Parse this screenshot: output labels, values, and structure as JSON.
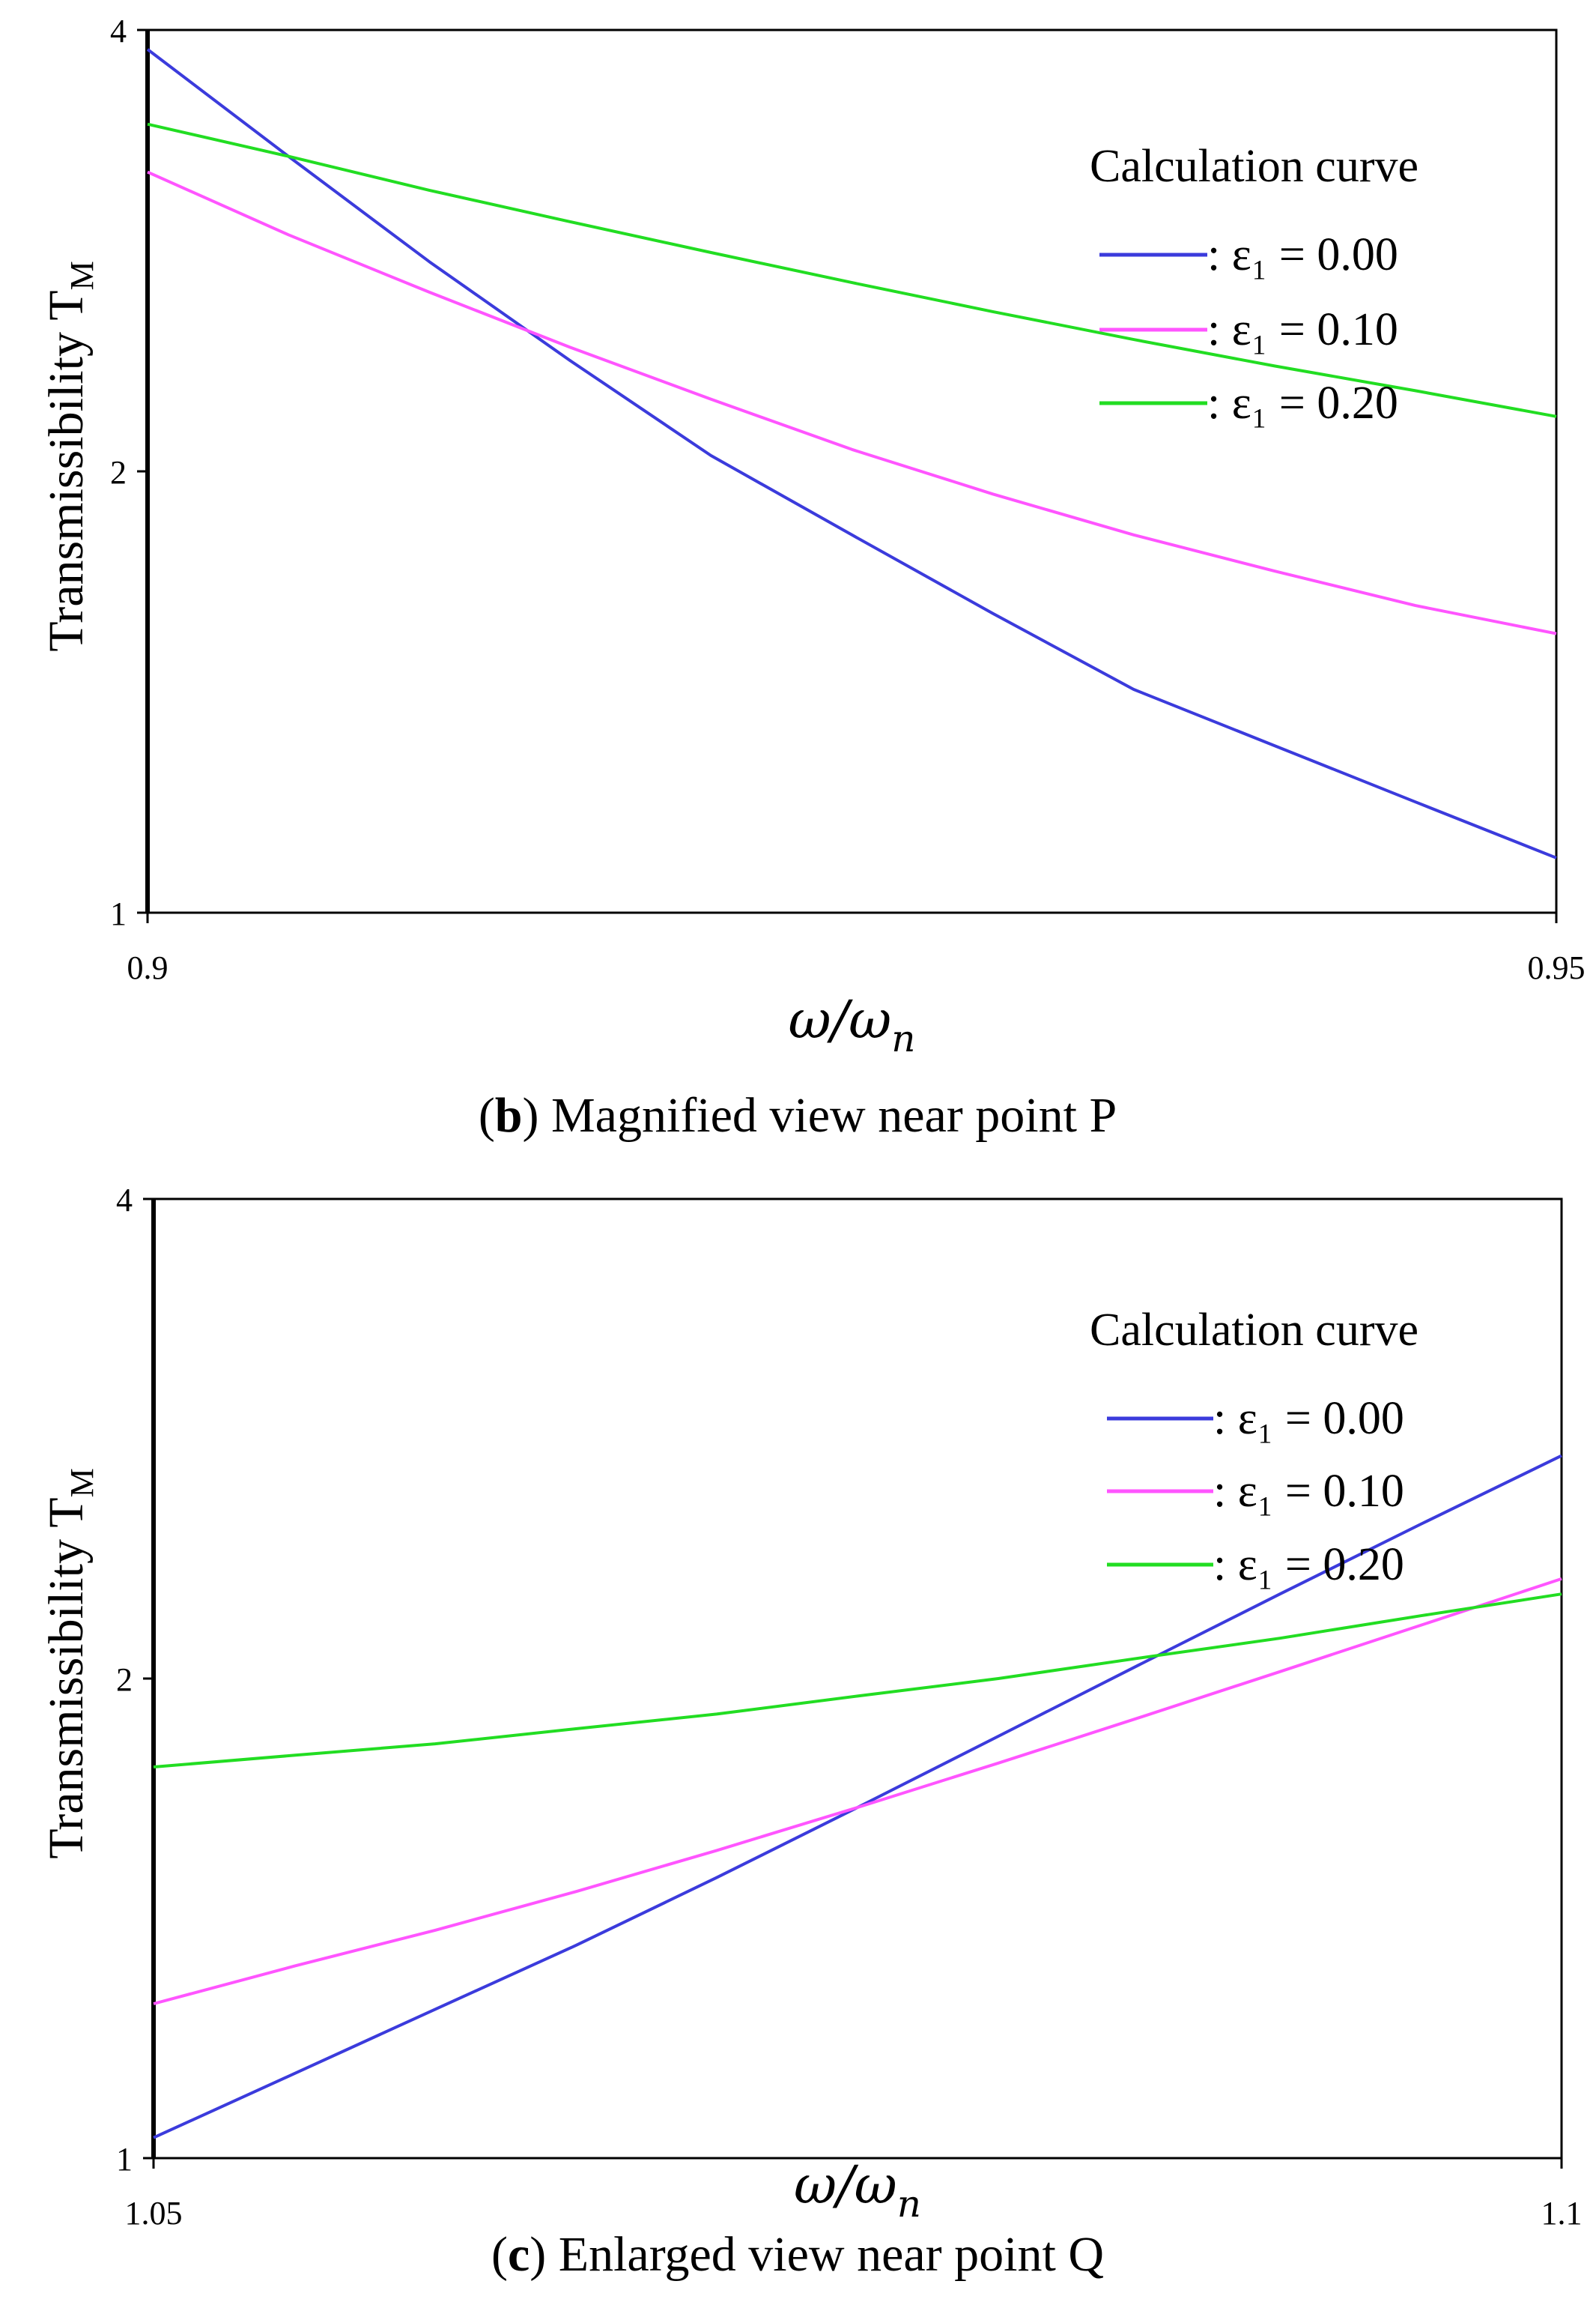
{
  "chart_data": [
    {
      "type": "line",
      "panel": "b",
      "caption_letter": "b",
      "caption_text": "Magnified view near point P",
      "ylabel": "Transmissibility T",
      "ylabel_sub": "M",
      "xlabel": "ω/ω",
      "xlabel_sub": "n",
      "yscale": "log",
      "xlim": [
        0.9,
        0.95
      ],
      "ylim": [
        1,
        4
      ],
      "x_ticks": [
        "0.9",
        "0.95"
      ],
      "y_ticks": [
        "1",
        "2",
        "4"
      ],
      "legend_title": "Calculation curve",
      "legend_position": "top-right",
      "x": [
        0.9,
        0.905,
        0.91,
        0.915,
        0.92,
        0.925,
        0.93,
        0.935,
        0.94,
        0.945,
        0.95
      ],
      "series": [
        {
          "name": ": ε₁ = 0.00",
          "color": "#3b3bdc",
          "values": [
            3.88,
            3.28,
            2.78,
            2.38,
            2.05,
            1.81,
            1.6,
            1.42,
            1.3,
            1.19,
            1.09
          ]
        },
        {
          "name": ": ε₁ = 0.10",
          "color": "#ff55ff",
          "values": [
            3.2,
            2.9,
            2.65,
            2.43,
            2.24,
            2.07,
            1.93,
            1.81,
            1.71,
            1.62,
            1.55
          ]
        },
        {
          "name": ": ε₁ = 0.20",
          "color": "#22dd22",
          "values": [
            3.45,
            3.28,
            3.11,
            2.96,
            2.82,
            2.69,
            2.57,
            2.46,
            2.36,
            2.27,
            2.18
          ]
        }
      ]
    },
    {
      "type": "line",
      "panel": "c",
      "caption_letter": "c",
      "caption_text": "Enlarged view near point Q",
      "ylabel": "Transmissibility T",
      "ylabel_sub": "M",
      "xlabel": "ω/ω",
      "xlabel_sub": "n",
      "yscale": "log",
      "xlim": [
        1.05,
        1.1
      ],
      "ylim": [
        1,
        4
      ],
      "x_ticks": [
        "1.05",
        "1.1"
      ],
      "y_ticks": [
        "1",
        "2",
        "4"
      ],
      "legend_title": "Calculation curve",
      "legend_position": "top-right",
      "x": [
        1.05,
        1.055,
        1.06,
        1.065,
        1.07,
        1.075,
        1.08,
        1.085,
        1.09,
        1.095,
        1.1
      ],
      "series": [
        {
          "name": ": ε₁ = 0.00",
          "color": "#3b3bdc",
          "values": [
            1.03,
            1.13,
            1.24,
            1.36,
            1.5,
            1.66,
            1.84,
            2.04,
            2.26,
            2.5,
            2.76
          ]
        },
        {
          "name": ": ε₁ = 0.10",
          "color": "#ff55ff",
          "values": [
            1.25,
            1.32,
            1.39,
            1.47,
            1.56,
            1.66,
            1.77,
            1.89,
            2.02,
            2.16,
            2.31
          ]
        },
        {
          "name": ": ε₁ = 0.20",
          "color": "#22dd22",
          "values": [
            1.76,
            1.79,
            1.82,
            1.86,
            1.9,
            1.95,
            2.0,
            2.06,
            2.12,
            2.19,
            2.26
          ]
        }
      ]
    }
  ]
}
